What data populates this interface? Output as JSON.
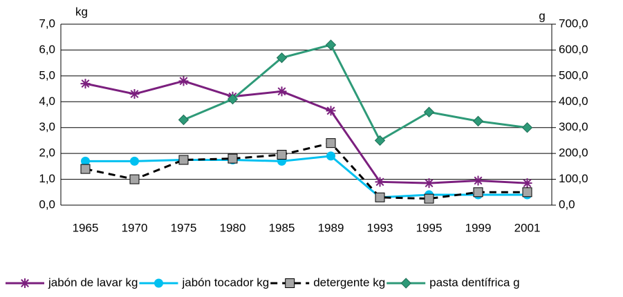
{
  "chart_data": {
    "type": "line",
    "y_unit": "kg",
    "y2_unit": "g",
    "categories": [
      "1965",
      "1970",
      "1975",
      "1980",
      "1985",
      "1989",
      "1993",
      "1995",
      "1999",
      "2001"
    ],
    "series": [
      {
        "name": "jabón de lavar kg",
        "color": "#7b1f7e",
        "marker": "star",
        "values": [
          4.7,
          4.3,
          4.8,
          4.2,
          4.4,
          3.65,
          0.9,
          0.85,
          0.95,
          0.85
        ]
      },
      {
        "name": "jabón tocador kg",
        "color": "#00c0f0",
        "marker": "circle",
        "values": [
          1.7,
          1.7,
          1.75,
          1.75,
          1.7,
          1.9,
          0.3,
          0.4,
          0.4,
          0.4
        ]
      },
      {
        "name": "detergente kg",
        "color": "#000000",
        "marker": "square",
        "dashed": true,
        "values": [
          1.4,
          1.0,
          1.75,
          1.8,
          1.95,
          2.4,
          0.3,
          0.25,
          0.5,
          0.5
        ]
      },
      {
        "name": "pasta dentífrica g",
        "color": "#2e9a78",
        "marker": "diamond",
        "axis": "y2",
        "values": [
          null,
          null,
          330,
          410,
          570,
          620,
          250,
          360,
          325,
          300
        ]
      }
    ],
    "ylim": [
      0,
      7
    ],
    "yticks": [
      {
        "value": 0,
        "label": "0,0"
      },
      {
        "value": 1,
        "label": "1,0"
      },
      {
        "value": 2,
        "label": "2,0"
      },
      {
        "value": 3,
        "label": "3,0"
      },
      {
        "value": 4,
        "label": "4,0"
      },
      {
        "value": 5,
        "label": "5,0"
      },
      {
        "value": 6,
        "label": "6,0"
      },
      {
        "value": 7,
        "label": "7,0"
      }
    ],
    "y2lim": [
      0,
      700
    ],
    "y2ticks": [
      {
        "value": 0,
        "label": "0,0"
      },
      {
        "value": 100,
        "label": "100,0"
      },
      {
        "value": 200,
        "label": "200,0"
      },
      {
        "value": 300,
        "label": "300,0"
      },
      {
        "value": 400,
        "label": "400,0"
      },
      {
        "value": 500,
        "label": "500,0"
      },
      {
        "value": 600,
        "label": "600,0"
      },
      {
        "value": 700,
        "label": "700,0"
      }
    ],
    "grid": true
  }
}
